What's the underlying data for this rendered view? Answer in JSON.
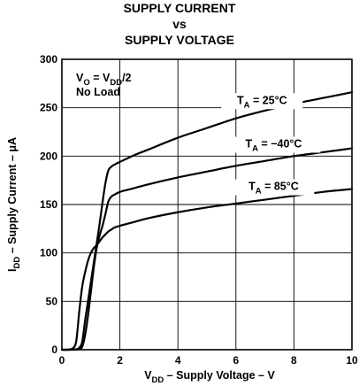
{
  "chart_data": {
    "type": "line",
    "title": [
      "SUPPLY CURRENT",
      "vs",
      "SUPPLY VOLTAGE"
    ],
    "xlabel": {
      "main": "V",
      "sub": "DD",
      "rest": " – Supply Voltage – V"
    },
    "ylabel": {
      "main": "I",
      "sub": "DD",
      "rest": " – Supply Current – μA"
    },
    "xlim": [
      0,
      10
    ],
    "ylim": [
      0,
      300
    ],
    "xticks": [
      0,
      2,
      4,
      6,
      8,
      10
    ],
    "yticks": [
      0,
      50,
      100,
      150,
      200,
      250,
      300
    ],
    "grid": true,
    "conditions": [
      {
        "parts": [
          [
            "V",
            ""
          ],
          [
            "O",
            "sub"
          ],
          [
            " = V",
            ""
          ],
          [
            "DD",
            "sub"
          ],
          [
            "/2",
            ""
          ]
        ]
      },
      {
        "parts": [
          [
            "No Load",
            ""
          ]
        ]
      }
    ],
    "series": [
      {
        "name": "TA = 25°C",
        "label": {
          "main": "T",
          "sub": "A",
          "rest": " = 25°C"
        },
        "x": [
          0,
          0.3,
          0.5,
          0.6,
          0.7,
          0.8,
          0.9,
          1.0,
          1.1,
          1.2,
          1.3,
          1.4,
          1.5,
          1.6,
          1.7,
          1.8,
          2.0,
          2.5,
          3,
          4,
          5,
          6,
          7,
          8,
          9,
          10
        ],
        "y": [
          0,
          0,
          0.5,
          2,
          8,
          30,
          50,
          70,
          90,
          110,
          130,
          152,
          172,
          185,
          189,
          191,
          194,
          201,
          207,
          219,
          229,
          239,
          247,
          254,
          260,
          266
        ]
      },
      {
        "name": "TA = −40°C",
        "label": {
          "main": "T",
          "sub": "A",
          "rest": " = −40°C"
        },
        "x": [
          0,
          0.3,
          0.5,
          0.6,
          0.7,
          0.8,
          0.9,
          1.0,
          1.1,
          1.2,
          1.3,
          1.4,
          1.5,
          1.6,
          1.7,
          1.8,
          2.0,
          2.5,
          3,
          4,
          5,
          6,
          7,
          8,
          9,
          10
        ],
        "y": [
          0,
          0,
          0,
          0.5,
          3,
          15,
          35,
          60,
          85,
          105,
          118,
          128,
          140,
          153,
          158,
          160,
          163,
          167,
          171,
          178,
          184,
          190,
          195,
          200,
          204,
          208
        ]
      },
      {
        "name": "TA = 85°C",
        "label": {
          "main": "T",
          "sub": "A",
          "rest": " = 85°C"
        },
        "x": [
          0,
          0.2,
          0.4,
          0.5,
          0.6,
          0.7,
          0.8,
          0.9,
          1.0,
          1.1,
          1.2,
          1.3,
          1.4,
          1.5,
          1.6,
          1.7,
          1.8,
          2.0,
          2.5,
          3,
          4,
          5,
          6,
          7,
          8,
          9,
          10
        ],
        "y": [
          0,
          0,
          2,
          10,
          40,
          65,
          80,
          92,
          100,
          105,
          108,
          112,
          116,
          119,
          122,
          124,
          126,
          128,
          132,
          136,
          142,
          147,
          151,
          155,
          159,
          163,
          166
        ]
      }
    ]
  }
}
